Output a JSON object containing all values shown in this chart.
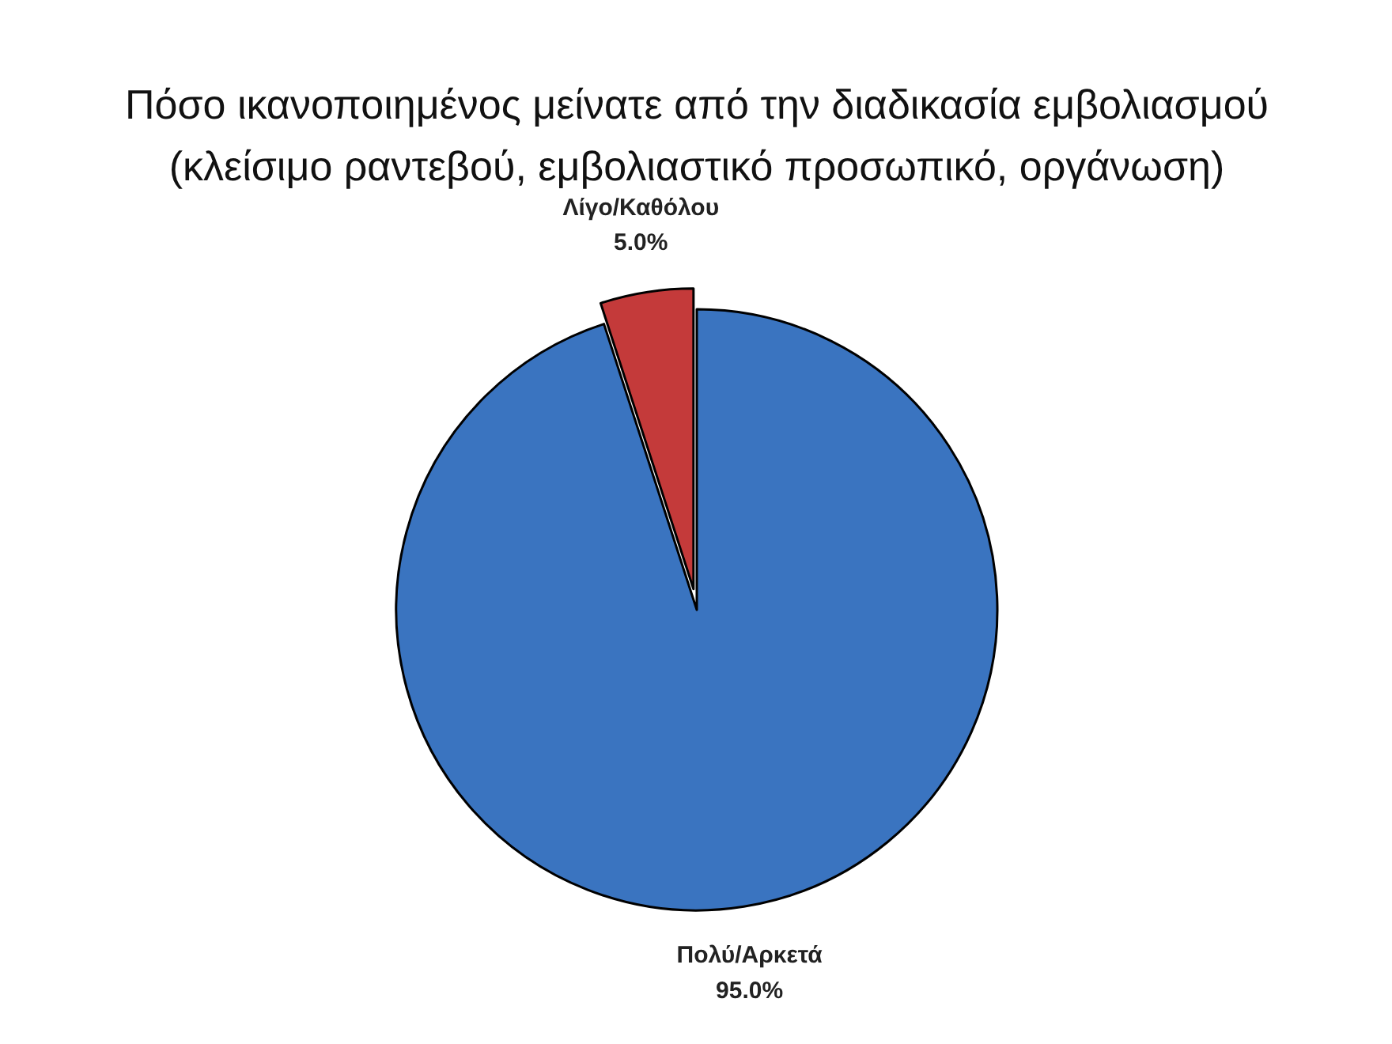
{
  "chart_data": {
    "type": "pie",
    "title": "Πόσο ικανοποιημένος μείνατε από την διαδικασία εμβολιασμού\n(κλείσιμο ραντεβού, εμβολιαστικό προσωπικό, οργάνωση)",
    "categories": [
      "Πολύ/Αρκετά",
      "Λίγο/Καθόλου"
    ],
    "values": [
      95.0,
      5.0
    ],
    "colors": [
      "#3a74c0",
      "#c43a3a"
    ],
    "value_labels": [
      "95.0%",
      "5.0%"
    ]
  }
}
